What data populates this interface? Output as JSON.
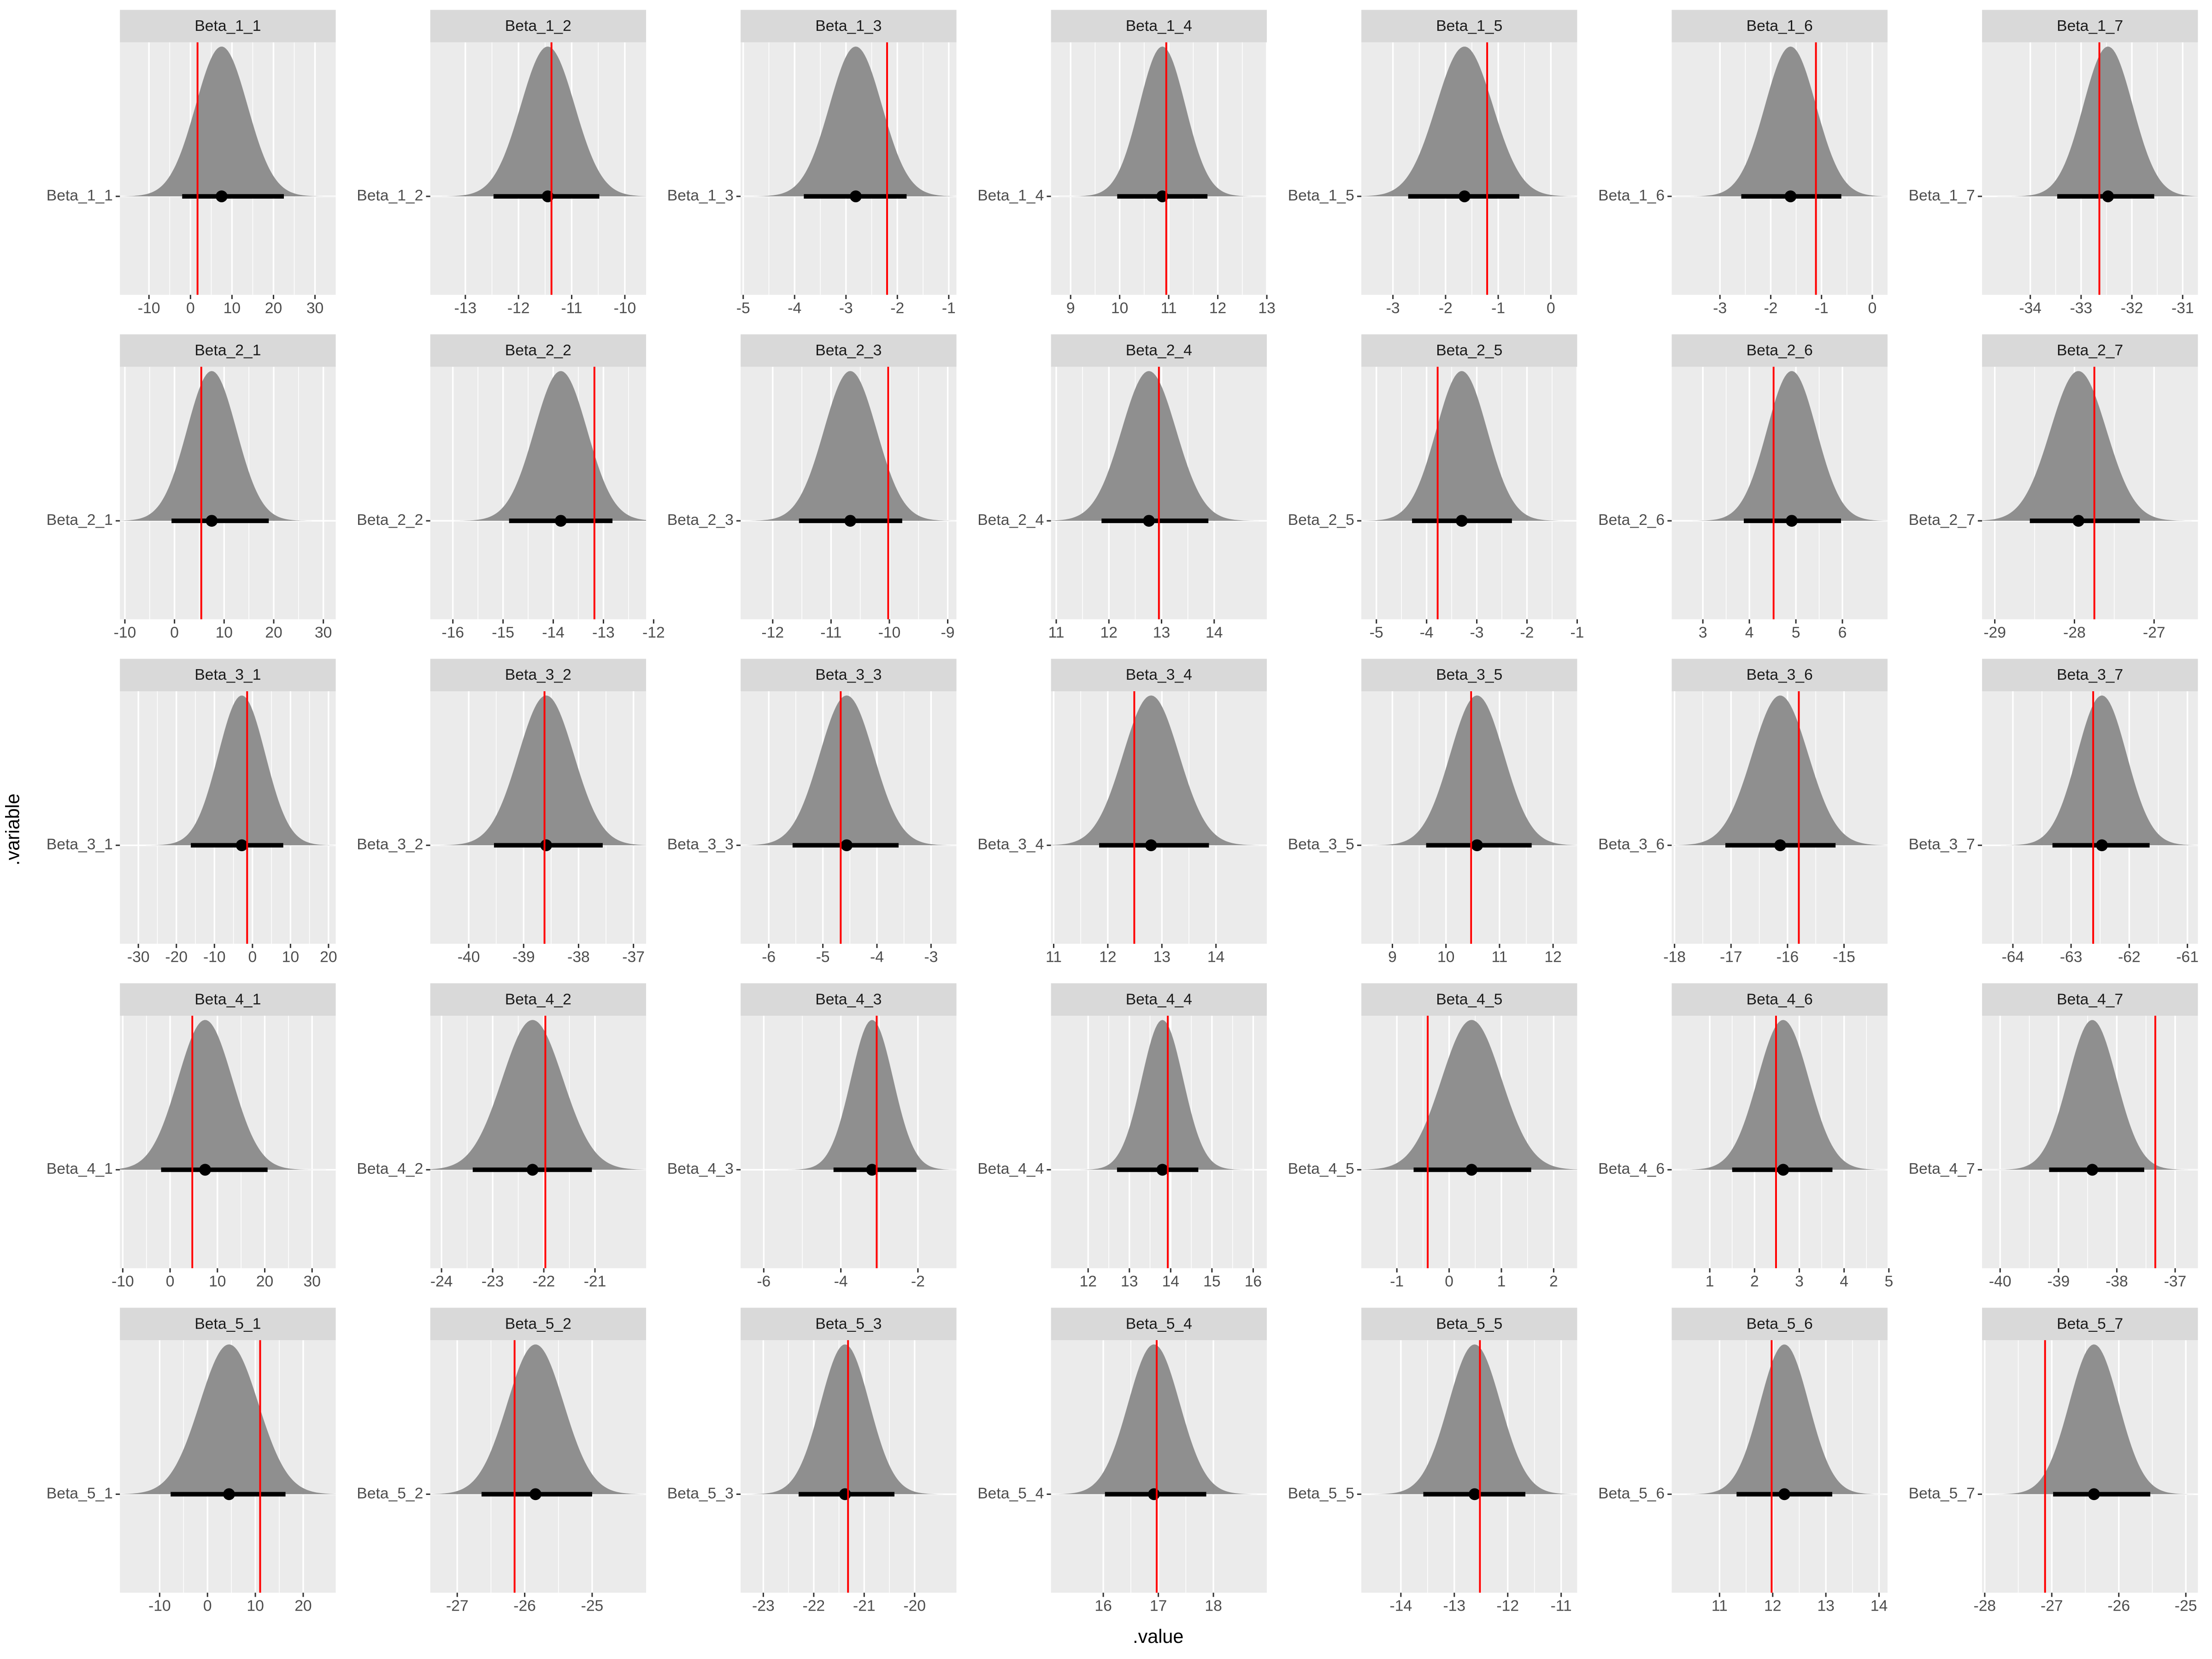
{
  "chart_data": {
    "type": "halfeye",
    "x_label": ".value",
    "y_label": ".variable",
    "panels": [
      {
        "title": "Beta_1_1",
        "category": "Beta_1_1",
        "xlim": [
          -17,
          35
        ],
        "xticks": [
          -10,
          0,
          10,
          20,
          30
        ],
        "median": 7.5,
        "interval": [
          -2,
          22.5
        ],
        "true_value": 1.7
      },
      {
        "title": "Beta_1_2",
        "category": "Beta_1_2",
        "xlim": [
          -13.66,
          -9.6
        ],
        "xticks": [
          -13,
          -12,
          -11,
          -10
        ],
        "median": -11.45,
        "interval": [
          -12.47,
          -10.48
        ],
        "true_value": -11.38
      },
      {
        "title": "Beta_1_3",
        "category": "Beta_1_3",
        "xlim": [
          -5.05,
          -0.85
        ],
        "xticks": [
          -5,
          -4,
          -3,
          -2,
          -1
        ],
        "median": -2.81,
        "interval": [
          -3.82,
          -1.82
        ],
        "true_value": -2.2
      },
      {
        "title": "Beta_1_4",
        "category": "Beta_1_4",
        "xlim": [
          8.6,
          13.0
        ],
        "xticks": [
          9,
          10,
          11,
          12,
          13
        ],
        "median": 10.87,
        "interval": [
          9.95,
          11.79
        ],
        "true_value": 10.95
      },
      {
        "title": "Beta_1_5",
        "category": "Beta_1_5",
        "xlim": [
          -3.6,
          0.5
        ],
        "xticks": [
          -3,
          -2,
          -1,
          0
        ],
        "median": -1.64,
        "interval": [
          -2.71,
          -0.6
        ],
        "true_value": -1.21
      },
      {
        "title": "Beta_1_6",
        "category": "Beta_1_6",
        "xlim": [
          -3.95,
          0.3
        ],
        "xticks": [
          -3,
          -2,
          -1,
          0
        ],
        "median": -1.61,
        "interval": [
          -2.58,
          -0.61
        ],
        "true_value": -1.11
      },
      {
        "title": "Beta_1_7",
        "category": "Beta_1_7",
        "xlim": [
          -34.95,
          -30.7
        ],
        "xticks": [
          -34,
          -33,
          -32,
          -31
        ],
        "median": -32.47,
        "interval": [
          -33.47,
          -31.56
        ],
        "true_value": -32.64
      },
      {
        "title": "Beta_2_1",
        "category": "Beta_2_1",
        "xlim": [
          -11,
          32.5
        ],
        "xticks": [
          -10,
          0,
          10,
          20,
          30
        ],
        "median": 7.5,
        "interval": [
          -0.6,
          19
        ],
        "true_value": 5.4
      },
      {
        "title": "Beta_2_2",
        "category": "Beta_2_2",
        "xlim": [
          -16.45,
          -12.15
        ],
        "xticks": [
          -16,
          -15,
          -14,
          -13,
          -12
        ],
        "median": -13.85,
        "interval": [
          -14.88,
          -12.82
        ],
        "true_value": -13.18
      },
      {
        "title": "Beta_2_3",
        "category": "Beta_2_3",
        "xlim": [
          -12.55,
          -8.85
        ],
        "xticks": [
          -12,
          -11,
          -10,
          -9
        ],
        "median": -10.67,
        "interval": [
          -11.55,
          -9.78
        ],
        "true_value": -10.02
      },
      {
        "title": "Beta_2_4",
        "category": "Beta_2_4",
        "xlim": [
          10.9,
          15.0
        ],
        "xticks": [
          11,
          12,
          13,
          14
        ],
        "median": 12.76,
        "interval": [
          11.86,
          13.89
        ],
        "true_value": 12.95
      },
      {
        "title": "Beta_2_5",
        "category": "Beta_2_5",
        "xlim": [
          -5.3,
          -1.0
        ],
        "xticks": [
          -5,
          -4,
          -3,
          -2,
          -1
        ],
        "median": -3.3,
        "interval": [
          -4.29,
          -2.3
        ],
        "true_value": -3.78
      },
      {
        "title": "Beta_2_6",
        "category": "Beta_2_6",
        "xlim": [
          2.33,
          6.97
        ],
        "xticks": [
          3,
          4,
          5,
          6
        ],
        "median": 4.91,
        "interval": [
          3.88,
          5.97
        ],
        "true_value": 4.52
      },
      {
        "title": "Beta_2_7",
        "category": "Beta_2_7",
        "xlim": [
          -29.16,
          -26.45
        ],
        "xticks": [
          -29,
          -28,
          -27
        ],
        "median": -27.95,
        "interval": [
          -28.56,
          -27.18
        ],
        "true_value": -27.75
      },
      {
        "title": "Beta_3_1",
        "category": "Beta_3_1",
        "xlim": [
          -34.85,
          21.9
        ],
        "xticks": [
          -30,
          -20,
          -10,
          0,
          10,
          20
        ],
        "median": -2.8,
        "interval": [
          -16.2,
          8.1
        ],
        "true_value": -1.4
      },
      {
        "title": "Beta_3_2",
        "category": "Beta_3_2",
        "xlim": [
          -40.7,
          -36.77
        ],
        "xticks": [
          -40,
          -39,
          -38,
          -37
        ],
        "median": -38.59,
        "interval": [
          -39.54,
          -37.56
        ],
        "true_value": -38.62
      },
      {
        "title": "Beta_3_3",
        "category": "Beta_3_3",
        "xlim": [
          -6.52,
          -2.53
        ],
        "xticks": [
          -6,
          -5,
          -4,
          -3
        ],
        "median": -4.56,
        "interval": [
          -5.56,
          -3.6
        ],
        "true_value": -4.67
      },
      {
        "title": "Beta_3_4",
        "category": "Beta_3_4",
        "xlim": [
          10.95,
          14.94
        ],
        "xticks": [
          11,
          12,
          13,
          14
        ],
        "median": 12.8,
        "interval": [
          11.84,
          13.87
        ],
        "true_value": 12.49
      },
      {
        "title": "Beta_3_5",
        "category": "Beta_3_5",
        "xlim": [
          8.42,
          12.45
        ],
        "xticks": [
          9,
          10,
          11,
          12
        ],
        "median": 10.58,
        "interval": [
          9.63,
          11.6
        ],
        "true_value": 10.47
      },
      {
        "title": "Beta_3_6",
        "category": "Beta_3_6",
        "xlim": [
          -18.05,
          -14.23
        ],
        "xticks": [
          -18,
          -17,
          -16,
          -15
        ],
        "median": -16.13,
        "interval": [
          -17.1,
          -15.15
        ],
        "true_value": -15.8
      },
      {
        "title": "Beta_3_7",
        "category": "Beta_3_7",
        "xlim": [
          -64.53,
          -60.82
        ],
        "xticks": [
          -64,
          -63,
          -62,
          -61
        ],
        "median": -62.47,
        "interval": [
          -63.32,
          -61.65
        ],
        "true_value": -62.62
      },
      {
        "title": "Beta_4_1",
        "category": "Beta_4_1",
        "xlim": [
          -10.6,
          35
        ],
        "xticks": [
          -10,
          0,
          10,
          20,
          30
        ],
        "median": 7.4,
        "interval": [
          -1.9,
          20.6
        ],
        "true_value": 4.7
      },
      {
        "title": "Beta_4_2",
        "category": "Beta_4_2",
        "xlim": [
          -24.22,
          -20.0
        ],
        "xticks": [
          -24,
          -23,
          -22,
          -21
        ],
        "median": -22.22,
        "interval": [
          -23.39,
          -21.06
        ],
        "true_value": -21.97
      },
      {
        "title": "Beta_4_3",
        "category": "Beta_4_3",
        "xlim": [
          -6.6,
          -1.0
        ],
        "xticks": [
          -6,
          -4,
          -2
        ],
        "median": -3.19,
        "interval": [
          -4.19,
          -2.04
        ],
        "true_value": -3.07
      },
      {
        "title": "Beta_4_4",
        "category": "Beta_4_4",
        "xlim": [
          11.1,
          16.33
        ],
        "xticks": [
          12,
          13,
          14,
          15,
          16
        ],
        "median": 13.8,
        "interval": [
          12.7,
          14.67
        ],
        "true_value": 13.93
      },
      {
        "title": "Beta_4_5",
        "category": "Beta_4_5",
        "xlim": [
          -1.68,
          2.45
        ],
        "xticks": [
          -1,
          0,
          1,
          2
        ],
        "median": 0.43,
        "interval": [
          -0.68,
          1.57
        ],
        "true_value": -0.41
      },
      {
        "title": "Beta_4_6",
        "category": "Beta_4_6",
        "xlim": [
          0.15,
          4.97
        ],
        "xticks": [
          1,
          2,
          3,
          4,
          5
        ],
        "median": 2.64,
        "interval": [
          1.5,
          3.74
        ],
        "true_value": 2.48
      },
      {
        "title": "Beta_4_7",
        "category": "Beta_4_7",
        "xlim": [
          -40.31,
          -36.61
        ],
        "xticks": [
          -40,
          -39,
          -38,
          -37
        ],
        "median": -38.42,
        "interval": [
          -39.16,
          -37.53
        ],
        "true_value": -37.34
      },
      {
        "title": "Beta_5_1",
        "category": "Beta_5_1",
        "xlim": [
          -18.3,
          26.8
        ],
        "xticks": [
          -10,
          0,
          10,
          20
        ],
        "median": 4.5,
        "interval": [
          -7.7,
          16.3
        ],
        "true_value": 11
      },
      {
        "title": "Beta_5_2",
        "category": "Beta_5_2",
        "xlim": [
          -27.4,
          -24.2
        ],
        "xticks": [
          -27,
          -26,
          -25
        ],
        "median": -25.84,
        "interval": [
          -26.64,
          -25.0
        ],
        "true_value": -26.15
      },
      {
        "title": "Beta_5_3",
        "category": "Beta_5_3",
        "xlim": [
          -23.45,
          -19.17
        ],
        "xticks": [
          -23,
          -22,
          -21,
          -20
        ],
        "median": -21.38,
        "interval": [
          -22.3,
          -20.4
        ],
        "true_value": -21.32
      },
      {
        "title": "Beta_5_4",
        "category": "Beta_5_4",
        "xlim": [
          15.05,
          18.97
        ],
        "xticks": [
          16,
          17,
          18
        ],
        "median": 16.92,
        "interval": [
          16.03,
          17.87
        ],
        "true_value": 16.97
      },
      {
        "title": "Beta_5_5",
        "category": "Beta_5_5",
        "xlim": [
          -14.74,
          -10.7
        ],
        "xticks": [
          -14,
          -13,
          -12,
          -11
        ],
        "median": -12.62,
        "interval": [
          -13.58,
          -11.67
        ],
        "true_value": -12.52
      },
      {
        "title": "Beta_5_6",
        "category": "Beta_5_6",
        "xlim": [
          10.1,
          14.16
        ],
        "xticks": [
          11,
          12,
          13,
          14
        ],
        "median": 12.22,
        "interval": [
          11.32,
          13.12
        ],
        "true_value": 11.98
      },
      {
        "title": "Beta_5_7",
        "category": "Beta_5_7",
        "xlim": [
          -28.04,
          -24.82
        ],
        "xticks": [
          -28,
          -27,
          -26,
          -25
        ],
        "median": -26.37,
        "interval": [
          -26.98,
          -25.53
        ],
        "true_value": -27.1
      }
    ]
  }
}
